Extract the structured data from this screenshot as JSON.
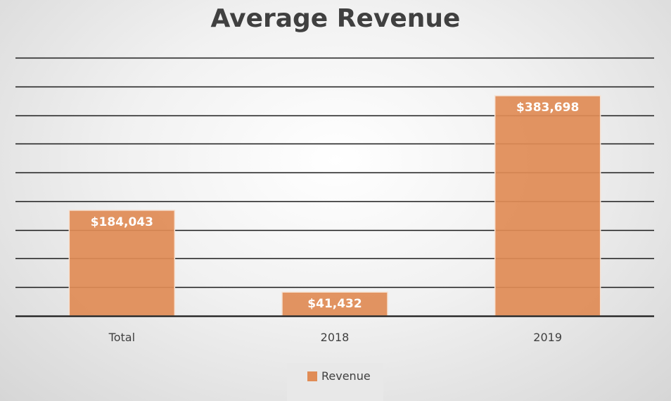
{
  "chart_data": {
    "type": "bar",
    "title": "Average Revenue",
    "categories": [
      "Total",
      "2018",
      "2019"
    ],
    "series": [
      {
        "name": "Revenue",
        "values": [
          184043,
          41432,
          383698
        ],
        "labels": [
          "$184,043",
          "$41,432",
          "$383,698"
        ],
        "color": "#e08c56"
      }
    ],
    "ylim": [
      0,
      450000
    ],
    "gridlines": true,
    "legend": "bottom"
  }
}
